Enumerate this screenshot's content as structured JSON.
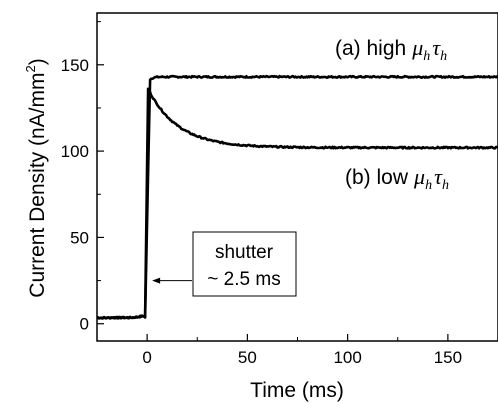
{
  "chart_data": {
    "type": "line",
    "xlabel": "Time (ms)",
    "ylabel": "Current Density (nA/mm",
    "ylabel_sup": "2",
    "ylabel_close": ")",
    "xlim": [
      -25,
      175
    ],
    "ylim": [
      -10,
      180
    ],
    "xticks": [
      0,
      50,
      100,
      150
    ],
    "yticks": [
      0,
      50,
      100,
      150
    ],
    "xtick_labels": [
      "0",
      "50",
      "100",
      "150"
    ],
    "ytick_labels": [
      "0",
      "50",
      "100",
      "150"
    ],
    "grid": false,
    "series": [
      {
        "label_prefix": "(a) high",
        "label_mu": "μ",
        "label_mu_sub": "h",
        "label_tau": "τ",
        "label_tau_sub": "h",
        "baseline": 3.5,
        "rise_start_ms": -1,
        "rise_end_ms": 1.5,
        "plateau": 143
      },
      {
        "label_prefix": "(b) low",
        "label_mu": "μ",
        "label_mu_sub": "h",
        "label_tau": "τ",
        "label_tau_sub": "h",
        "baseline": 3.5,
        "rise_start_ms": -1,
        "rise_end_ms": 0.5,
        "peak": 136,
        "steady": 102,
        "decay_tau_ms": 15
      }
    ],
    "annotation": {
      "line1": "shutter",
      "line2": "~ 2.5 ms",
      "arrow_target_ms": 1,
      "arrow_target_value": 25
    }
  }
}
